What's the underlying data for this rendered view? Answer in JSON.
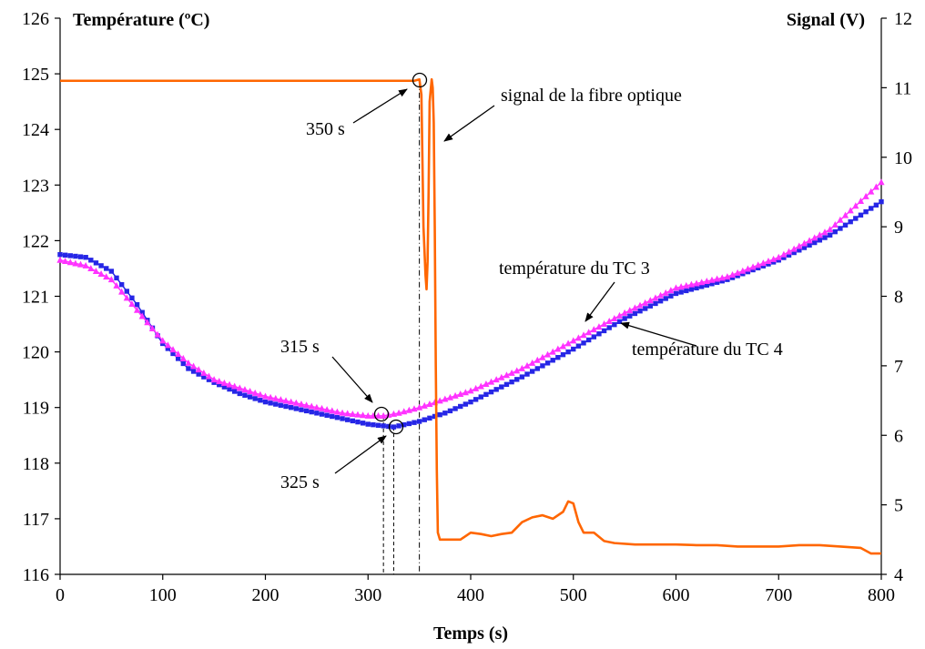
{
  "chart_data": {
    "type": "line",
    "title": "",
    "xlabel": "Temps (s)",
    "ylabel_left": "Température (ºC)",
    "ylabel_right": "Signal (V)",
    "xlim": [
      0,
      800
    ],
    "ylim_left": [
      116,
      126
    ],
    "ylim_right": [
      4,
      12
    ],
    "x_ticks": [
      0,
      100,
      200,
      300,
      400,
      500,
      600,
      700,
      800
    ],
    "y_left_ticks": [
      116,
      117,
      118,
      119,
      120,
      121,
      122,
      123,
      124,
      125,
      126
    ],
    "y_right_ticks": [
      4,
      5,
      6,
      7,
      8,
      9,
      10,
      11,
      12
    ],
    "grid": false,
    "series": [
      {
        "name": "température du TC 3",
        "axis": "left",
        "marker": "triangle",
        "color": "#ff33ff",
        "x": [
          0,
          25,
          50,
          75,
          100,
          125,
          150,
          175,
          200,
          225,
          250,
          275,
          300,
          315,
          330,
          350,
          375,
          400,
          450,
          500,
          550,
          600,
          650,
          700,
          750,
          800
        ],
        "y": [
          121.65,
          121.55,
          121.3,
          120.75,
          120.2,
          119.8,
          119.5,
          119.35,
          119.2,
          119.1,
          119.0,
          118.9,
          118.85,
          118.85,
          118.9,
          119.0,
          119.15,
          119.3,
          119.7,
          120.2,
          120.7,
          121.15,
          121.35,
          121.7,
          122.2,
          123.05
        ]
      },
      {
        "name": "température du TC 4",
        "axis": "left",
        "marker": "square",
        "color": "#2626e6",
        "x": [
          0,
          25,
          50,
          75,
          100,
          125,
          150,
          175,
          200,
          225,
          250,
          275,
          300,
          325,
          350,
          375,
          400,
          450,
          500,
          550,
          600,
          650,
          700,
          750,
          800
        ],
        "y": [
          121.75,
          121.7,
          121.45,
          120.85,
          120.15,
          119.7,
          119.45,
          119.25,
          119.1,
          119.0,
          118.9,
          118.8,
          118.7,
          118.65,
          118.75,
          118.9,
          119.1,
          119.55,
          120.05,
          120.6,
          121.05,
          121.3,
          121.65,
          122.1,
          122.7
        ]
      },
      {
        "name": "signal de la fibre optique",
        "axis": "right",
        "marker": "none",
        "color": "#ff6600",
        "x": [
          0,
          345,
          350,
          352,
          354,
          356,
          357,
          358,
          359,
          360,
          362,
          363,
          364,
          365,
          366,
          367,
          368,
          370,
          380,
          390,
          400,
          410,
          420,
          430,
          440,
          450,
          460,
          470,
          480,
          490,
          495,
          500,
          505,
          510,
          520,
          530,
          540,
          560,
          580,
          600,
          620,
          640,
          660,
          680,
          700,
          720,
          740,
          760,
          780,
          790,
          800
        ],
        "y": [
          11.1,
          11.1,
          11.12,
          10.9,
          9.0,
          8.3,
          8.1,
          8.5,
          9.5,
          10.8,
          11.12,
          11.0,
          10.5,
          9.0,
          7.0,
          5.5,
          4.6,
          4.5,
          4.5,
          4.5,
          4.6,
          4.58,
          4.55,
          4.58,
          4.6,
          4.75,
          4.82,
          4.85,
          4.8,
          4.9,
          5.05,
          5.02,
          4.75,
          4.6,
          4.6,
          4.48,
          4.45,
          4.43,
          4.43,
          4.43,
          4.42,
          4.42,
          4.4,
          4.4,
          4.4,
          4.42,
          4.42,
          4.4,
          4.38,
          4.3,
          4.3
        ]
      }
    ],
    "annotations": [
      {
        "text": "350 s",
        "x": 350,
        "axis": "right",
        "y": 11.1
      },
      {
        "text": "signal de la fibre optique",
        "x": 362,
        "axis": "right",
        "y": 10.3
      },
      {
        "text": "315 s",
        "x": 315,
        "axis": "left",
        "y": 118.85
      },
      {
        "text": "325 s",
        "x": 325,
        "axis": "left",
        "y": 118.65
      },
      {
        "text": "température du TC 3",
        "x": 512,
        "axis": "left",
        "y": 120.3
      },
      {
        "text": "température du TC 4",
        "x": 545,
        "axis": "left",
        "y": 120.0
      }
    ],
    "vertical_marker_lines": [
      315,
      325,
      350
    ]
  }
}
